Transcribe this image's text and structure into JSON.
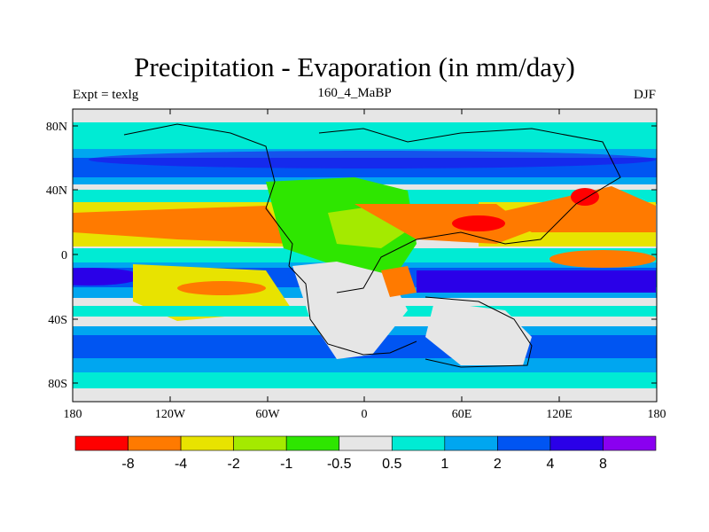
{
  "title": "Precipitation - Evaporation (in mm/day)",
  "left_label": "Expt = texlg",
  "center_label": "160_4_MaBP",
  "right_label": "DJF",
  "map": {
    "x_ticks": [
      "180",
      "120W",
      "60W",
      "0",
      "60E",
      "120E",
      "180"
    ],
    "y_ticks": [
      "80N",
      "40N",
      "0",
      "40S",
      "80S"
    ],
    "ocean_color": "#e6e6e6"
  },
  "colorbar": {
    "colors": [
      "#ff0000",
      "#ff7a00",
      "#e8e300",
      "#a4ea00",
      "#2ee600",
      "#e6e6e6",
      "#00ebd4",
      "#00a6f0",
      "#0055f2",
      "#2a00e8",
      "#8a00f0"
    ],
    "labels": [
      "-8",
      "-4",
      "-2",
      "-1",
      "-0.5",
      "0.5",
      "1",
      "2",
      "4",
      "8"
    ]
  }
}
